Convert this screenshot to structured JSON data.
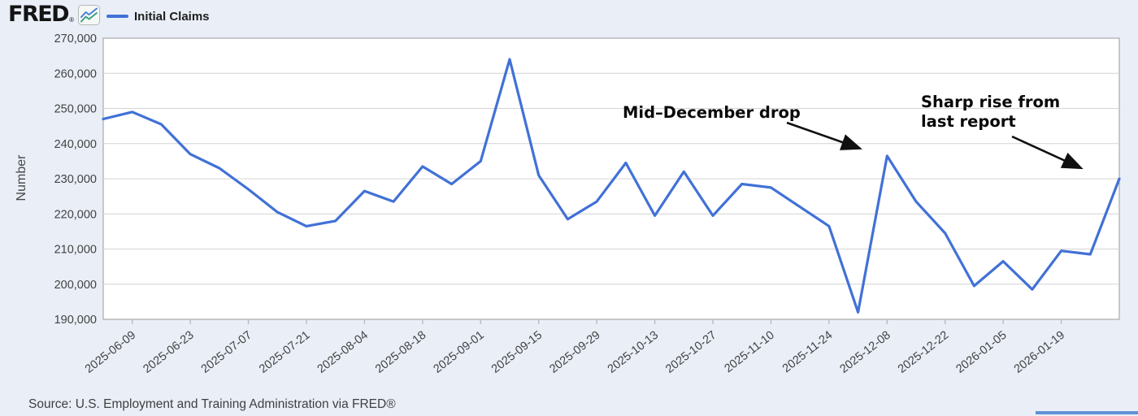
{
  "header": {
    "logo": "FRED",
    "registered_mark": "®",
    "legend_label": "Initial Claims"
  },
  "chart_data": {
    "type": "line",
    "title": "",
    "ylabel": "Number",
    "ylim": [
      190000,
      270000
    ],
    "ytick_step": 10000,
    "ytick_labels": [
      "190,000",
      "200,000",
      "210,000",
      "220,000",
      "230,000",
      "240,000",
      "250,000",
      "260,000",
      "270,000"
    ],
    "grid": true,
    "legend_position": "top-left",
    "line_color": "#4171d6",
    "series_name": "Initial Claims",
    "x": [
      "2025-06-02",
      "2025-06-09",
      "2025-06-16",
      "2025-06-23",
      "2025-06-30",
      "2025-07-07",
      "2025-07-14",
      "2025-07-21",
      "2025-07-28",
      "2025-08-04",
      "2025-08-11",
      "2025-08-18",
      "2025-08-25",
      "2025-09-01",
      "2025-09-08",
      "2025-09-15",
      "2025-09-22",
      "2025-09-29",
      "2025-10-06",
      "2025-10-13",
      "2025-10-20",
      "2025-10-27",
      "2025-11-03",
      "2025-11-10",
      "2025-11-17",
      "2025-11-24",
      "2025-12-01",
      "2025-12-08",
      "2025-12-15",
      "2025-12-22",
      "2025-12-29",
      "2026-01-05",
      "2026-01-12",
      "2026-01-19",
      "2026-01-26",
      "2026-02-02"
    ],
    "values": [
      247000,
      249000,
      245500,
      237000,
      233000,
      227000,
      220500,
      216500,
      218000,
      226500,
      223500,
      233500,
      228500,
      235000,
      264000,
      231000,
      218500,
      223500,
      234500,
      219500,
      232000,
      219500,
      228500,
      227500,
      222000,
      216500,
      192000,
      236500,
      223500,
      214500,
      199500,
      206500,
      198500,
      209500,
      208500,
      230000
    ],
    "xtick_labels": [
      "2025-06-09",
      "2025-06-23",
      "2025-07-07",
      "2025-07-21",
      "2025-08-04",
      "2025-08-18",
      "2025-09-01",
      "2025-09-15",
      "2025-09-29",
      "2025-10-13",
      "2025-10-27",
      "2025-11-10",
      "2025-11-24",
      "2025-12-08",
      "2025-12-22",
      "2026-01-05",
      "2026-01-19"
    ],
    "annotations": [
      {
        "text": "Mid–December drop",
        "arrow_points_to": {
          "date": "2025-12-08",
          "value": 236500
        }
      },
      {
        "text": "Sharp rise from last report",
        "arrow_points_to": {
          "date": "2026-02-02",
          "value": 230000
        }
      }
    ]
  },
  "annotation_labels": {
    "mid_december_drop": "Mid–December drop",
    "sharp_rise_line1": "Sharp rise from",
    "sharp_rise_line2": "last report"
  },
  "footer": {
    "source": "Source: U.S. Employment and Training Administration via FRED®"
  }
}
